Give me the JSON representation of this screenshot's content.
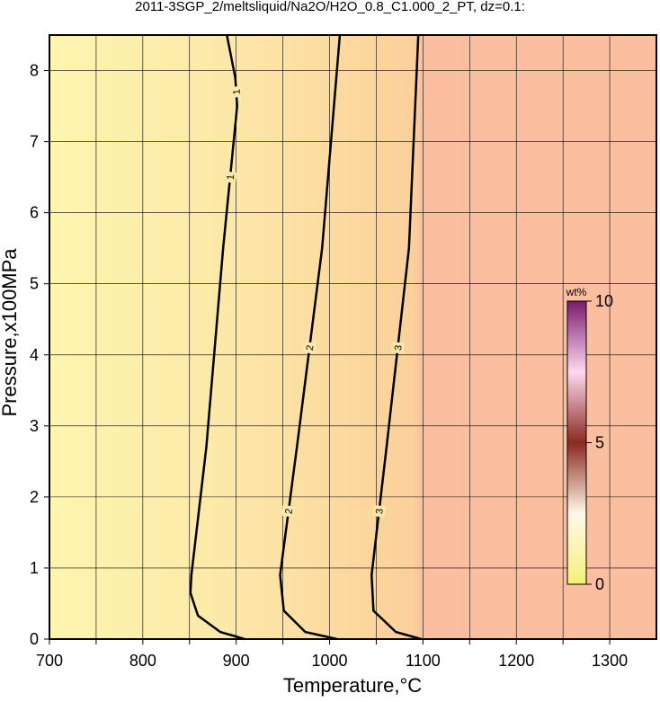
{
  "chart_data": {
    "type": "contour",
    "title": "2011-3SGP_2/meltsliquid/Na2O/H2O_0.8_C1.000_2_PT, dz=0.1:",
    "xlabel": "Temperature,°C",
    "ylabel": "Pressure,x100MPa",
    "xlim": [
      700,
      1350
    ],
    "ylim": [
      0,
      8.5
    ],
    "xticks": [
      700,
      {
        "value": 750,
        "label": null
      },
      800,
      {
        "value": 850,
        "label": null
      },
      900,
      {
        "value": 950,
        "label": null
      },
      1000,
      {
        "value": 1050,
        "label": null
      },
      1100,
      {
        "value": 1150,
        "label": null
      },
      1200,
      {
        "value": 1250,
        "label": null
      },
      1300
    ],
    "yticks": [
      0,
      1,
      2,
      3,
      4,
      5,
      6,
      7,
      8
    ],
    "grid": true,
    "contours": [
      {
        "level": 1,
        "x": [
          890,
          899,
          901,
          886,
          868,
          852,
          851,
          859,
          883,
          909
        ],
        "y": [
          8.5,
          7.9,
          7.5,
          5.5,
          2.7,
          0.9,
          0.65,
          0.33,
          0.1,
          0
        ]
      },
      {
        "level": 2,
        "x": [
          1011,
          992,
          965,
          947,
          951,
          974,
          1008
        ],
        "y": [
          8.5,
          5.5,
          2.7,
          0.9,
          0.4,
          0.1,
          0
        ]
      },
      {
        "level": 3,
        "x": [
          1095,
          1085,
          1061,
          1045,
          1047,
          1071,
          1098
        ],
        "y": [
          8.5,
          5.5,
          2.7,
          0.9,
          0.4,
          0.1,
          0
        ]
      }
    ],
    "colorbar": {
      "label": "wt%",
      "lim": [
        0,
        10
      ],
      "ticks": [
        0,
        5,
        10
      ]
    }
  }
}
